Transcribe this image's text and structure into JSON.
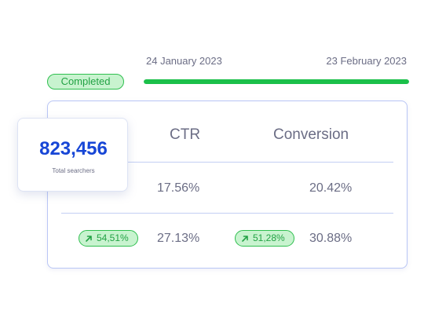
{
  "timeline": {
    "start_date": "24 January 2023",
    "end_date": "23 February 2023",
    "status": "Completed",
    "progress": 1.0,
    "accent_color": "#1bc04a"
  },
  "summary": {
    "value": "823,456",
    "label": "Total searchers"
  },
  "table": {
    "columns": [
      "CTR",
      "Conversion"
    ],
    "rows": [
      {
        "ctr": "17.56%",
        "conversion": "20.42%"
      },
      {
        "ctr_change": "54,51%",
        "ctr": "27.13%",
        "conversion_change": "51,28%",
        "conversion": "30.88%",
        "change_icon": "arrow-up-right-icon"
      }
    ]
  },
  "colors": {
    "brand_blue": "#1746d6",
    "positive_green": "#22a244"
  }
}
